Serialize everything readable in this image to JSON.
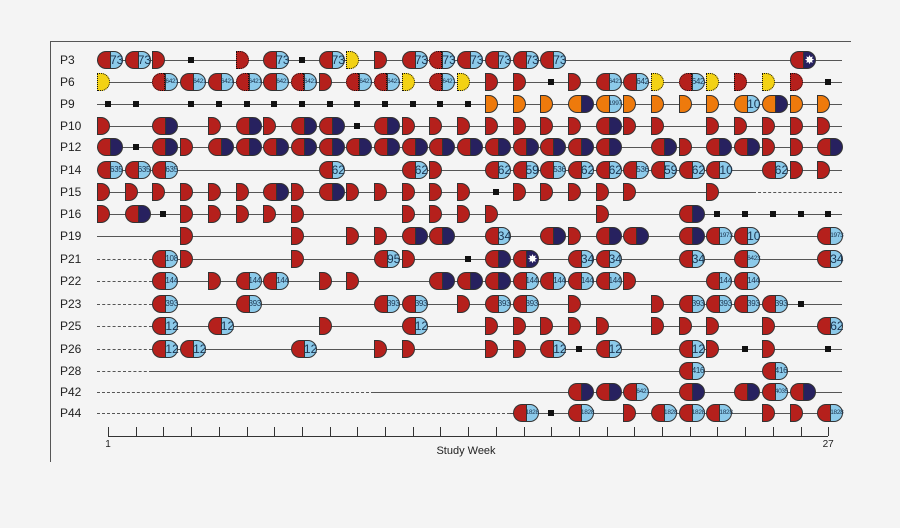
{
  "colors": {
    "red": "#b5201c",
    "navy": "#27215f",
    "light_blue": "#8ccaea",
    "yellow": "#f3d214",
    "orange": "#ee7a0c"
  },
  "legend_codes": {
    "R": "red half",
    "Rd": "red half dotted",
    "Y": "yellow half dotted",
    "O": "orange half",
    "RN": "red+navy",
    "RB": "red+light blue labeled",
    "RdB": "dotted red+light blue labeled",
    "ON": "orange+navy",
    "OB": "orange+light blue labeled",
    "RS": "red+navy with star",
    "sq": "black square"
  },
  "axis": {
    "label": "Study Week",
    "start_label": "1",
    "end_label": "27",
    "weeks": [
      1,
      27
    ]
  },
  "rows": [
    {
      "label": "P3",
      "lines": [
        [
          0.6,
          27.5,
          "solid"
        ]
      ],
      "events": [
        [
          1,
          "RB",
          "73"
        ],
        [
          2,
          "RB",
          "73"
        ],
        [
          3,
          "R"
        ],
        [
          4,
          "sq"
        ],
        [
          6,
          "Rd"
        ],
        [
          7,
          "RB",
          "73"
        ],
        [
          8,
          "sq"
        ],
        [
          9,
          "RB",
          "73"
        ],
        [
          10,
          "Y"
        ],
        [
          11,
          "R"
        ],
        [
          12,
          "RB",
          "73"
        ],
        [
          13,
          "RdB",
          "73"
        ],
        [
          14,
          "RB",
          "73"
        ],
        [
          15,
          "RB",
          "73"
        ],
        [
          16,
          "RB",
          "73"
        ],
        [
          17,
          "RB",
          "73"
        ],
        [
          26,
          "RS"
        ]
      ]
    },
    {
      "label": "P6",
      "lines": [
        [
          0.6,
          27.5,
          "solid"
        ]
      ],
      "events": [
        [
          1,
          "Y"
        ],
        [
          3,
          "RdB",
          "6421"
        ],
        [
          4,
          "RB",
          "6421"
        ],
        [
          5,
          "RB",
          "6421"
        ],
        [
          6,
          "RdB",
          "6421"
        ],
        [
          7,
          "RB",
          "6421"
        ],
        [
          8,
          "RdB",
          "6421"
        ],
        [
          9,
          "R"
        ],
        [
          10,
          "RdB",
          "6421"
        ],
        [
          11,
          "RdB",
          "6421"
        ],
        [
          12,
          "Y"
        ],
        [
          13,
          "RdB",
          "6421"
        ],
        [
          14,
          "Y"
        ],
        [
          15,
          "R"
        ],
        [
          16,
          "R"
        ],
        [
          17,
          "sq"
        ],
        [
          18,
          "R"
        ],
        [
          19,
          "RB",
          "6421"
        ],
        [
          20,
          "RB",
          "642"
        ],
        [
          21,
          "Y"
        ],
        [
          22,
          "RdB",
          "642"
        ],
        [
          23,
          "Y"
        ],
        [
          24,
          "Rd"
        ],
        [
          25,
          "Y"
        ],
        [
          26,
          "Rd"
        ],
        [
          27,
          "sq"
        ]
      ]
    },
    {
      "label": "P9",
      "lines": [
        [
          0.6,
          27.5,
          "solid"
        ]
      ],
      "events": [
        [
          1,
          "sq"
        ],
        [
          2,
          "sq"
        ],
        [
          4,
          "sq"
        ],
        [
          5,
          "sq"
        ],
        [
          6,
          "sq"
        ],
        [
          7,
          "sq"
        ],
        [
          8,
          "sq"
        ],
        [
          9,
          "sq"
        ],
        [
          10,
          "sq"
        ],
        [
          11,
          "sq"
        ],
        [
          12,
          "sq"
        ],
        [
          13,
          "sq"
        ],
        [
          14,
          "sq"
        ],
        [
          15,
          "O"
        ],
        [
          16,
          "O"
        ],
        [
          17,
          "O"
        ],
        [
          18,
          "ON"
        ],
        [
          19,
          "OB",
          "1997"
        ],
        [
          20,
          "O"
        ],
        [
          21,
          "O"
        ],
        [
          22,
          "O"
        ],
        [
          23,
          "O"
        ],
        [
          24,
          "OB",
          "10"
        ],
        [
          25,
          "ON"
        ],
        [
          26,
          "O"
        ],
        [
          27,
          "O"
        ]
      ]
    },
    {
      "label": "P10",
      "lines": [
        [
          0.6,
          27.5,
          "solid"
        ]
      ],
      "events": [
        [
          1,
          "R"
        ],
        [
          3,
          "RN"
        ],
        [
          5,
          "R"
        ],
        [
          6,
          "RN"
        ],
        [
          7,
          "R"
        ],
        [
          8,
          "RN"
        ],
        [
          9,
          "RN"
        ],
        [
          10,
          "sq"
        ],
        [
          11,
          "RN"
        ],
        [
          12,
          "R"
        ],
        [
          13,
          "R"
        ],
        [
          14,
          "R"
        ],
        [
          15,
          "R"
        ],
        [
          16,
          "R"
        ],
        [
          17,
          "R"
        ],
        [
          18,
          "R"
        ],
        [
          19,
          "RN"
        ],
        [
          20,
          "R"
        ],
        [
          21,
          "R"
        ],
        [
          23,
          "R"
        ],
        [
          24,
          "R"
        ],
        [
          25,
          "R"
        ],
        [
          26,
          "R"
        ],
        [
          27,
          "R"
        ]
      ]
    },
    {
      "label": "P12",
      "lines": [
        [
          0.6,
          27.5,
          "solid"
        ]
      ],
      "events": [
        [
          1,
          "RN"
        ],
        [
          2,
          "sq"
        ],
        [
          3,
          "RN"
        ],
        [
          4,
          "R"
        ],
        [
          5,
          "RN"
        ],
        [
          6,
          "RN"
        ],
        [
          7,
          "RN"
        ],
        [
          8,
          "RN"
        ],
        [
          9,
          "RN"
        ],
        [
          10,
          "RN"
        ],
        [
          11,
          "RN"
        ],
        [
          12,
          "RN"
        ],
        [
          13,
          "RN"
        ],
        [
          14,
          "RN"
        ],
        [
          15,
          "RN"
        ],
        [
          16,
          "RN"
        ],
        [
          17,
          "RN"
        ],
        [
          18,
          "RN"
        ],
        [
          19,
          "RN"
        ],
        [
          21,
          "RN"
        ],
        [
          22,
          "R"
        ],
        [
          23,
          "RN"
        ],
        [
          24,
          "RN"
        ],
        [
          25,
          "R"
        ],
        [
          26,
          "R"
        ],
        [
          27,
          "RN"
        ]
      ]
    },
    {
      "label": "P14",
      "lines": [
        [
          0.6,
          27.5,
          "solid"
        ]
      ],
      "events": [
        [
          1,
          "RB",
          "635"
        ],
        [
          2,
          "RB",
          "635"
        ],
        [
          3,
          "RB",
          "635"
        ],
        [
          9,
          "RB",
          "62"
        ],
        [
          12,
          "RB",
          "62"
        ],
        [
          13,
          "R"
        ],
        [
          15,
          "RB",
          "62"
        ],
        [
          16,
          "RB",
          "59"
        ],
        [
          17,
          "RB",
          "536"
        ],
        [
          18,
          "RB",
          "62"
        ],
        [
          19,
          "RB",
          "62"
        ],
        [
          20,
          "RB",
          "536"
        ],
        [
          21,
          "RB",
          "59"
        ],
        [
          22,
          "RB",
          "62"
        ],
        [
          23,
          "RB",
          "10"
        ],
        [
          25,
          "RB",
          "62"
        ],
        [
          26,
          "R"
        ],
        [
          27,
          "R"
        ]
      ]
    },
    {
      "label": "P15",
      "lines": [
        [
          0.6,
          24.3,
          "solid"
        ],
        [
          24.3,
          27.5,
          "dashed"
        ]
      ],
      "events": [
        [
          1,
          "R"
        ],
        [
          2,
          "R"
        ],
        [
          3,
          "R"
        ],
        [
          4,
          "R"
        ],
        [
          5,
          "R"
        ],
        [
          6,
          "R"
        ],
        [
          7,
          "RN"
        ],
        [
          8,
          "R"
        ],
        [
          9,
          "RN"
        ],
        [
          10,
          "R"
        ],
        [
          11,
          "R"
        ],
        [
          12,
          "R"
        ],
        [
          13,
          "R"
        ],
        [
          14,
          "R"
        ],
        [
          15,
          "sq"
        ],
        [
          16,
          "R"
        ],
        [
          17,
          "R"
        ],
        [
          18,
          "R"
        ],
        [
          19,
          "R"
        ],
        [
          20,
          "R"
        ],
        [
          23,
          "R"
        ]
      ]
    },
    {
      "label": "P16",
      "lines": [
        [
          0.6,
          27.5,
          "solid"
        ]
      ],
      "events": [
        [
          1,
          "R"
        ],
        [
          2,
          "RN"
        ],
        [
          3,
          "sq"
        ],
        [
          4,
          "R"
        ],
        [
          5,
          "R"
        ],
        [
          6,
          "R"
        ],
        [
          7,
          "R"
        ],
        [
          8,
          "R"
        ],
        [
          12,
          "R"
        ],
        [
          13,
          "R"
        ],
        [
          14,
          "R"
        ],
        [
          15,
          "R"
        ],
        [
          19,
          "R"
        ],
        [
          22,
          "RN"
        ],
        [
          23,
          "sq"
        ],
        [
          24,
          "sq"
        ],
        [
          25,
          "sq"
        ],
        [
          26,
          "sq"
        ],
        [
          27,
          "sq"
        ]
      ]
    },
    {
      "label": "P19",
      "lines": [
        [
          0.6,
          27.5,
          "solid"
        ]
      ],
      "events": [
        [
          4,
          "R"
        ],
        [
          8,
          "R"
        ],
        [
          10,
          "R"
        ],
        [
          11,
          "R"
        ],
        [
          12,
          "RN"
        ],
        [
          13,
          "RN"
        ],
        [
          15,
          "RB",
          "34"
        ],
        [
          17,
          "RN"
        ],
        [
          18,
          "R"
        ],
        [
          19,
          "RN"
        ],
        [
          20,
          "RN"
        ],
        [
          22,
          "RN"
        ],
        [
          23,
          "RB",
          "1973"
        ],
        [
          24,
          "RB",
          "10"
        ],
        [
          27,
          "RB",
          "1973"
        ]
      ]
    },
    {
      "label": "P21",
      "lines": [
        [
          0.6,
          2.6,
          "dashed"
        ],
        [
          2.6,
          27.5,
          "solid"
        ]
      ],
      "events": [
        [
          3,
          "RB",
          "108"
        ],
        [
          4,
          "R"
        ],
        [
          8,
          "R"
        ],
        [
          11,
          "RB",
          "95"
        ],
        [
          12,
          "R"
        ],
        [
          14,
          "sq"
        ],
        [
          15,
          "RN"
        ],
        [
          16,
          "RS"
        ],
        [
          18,
          "RB",
          "34"
        ],
        [
          19,
          "RB",
          "34"
        ],
        [
          22,
          "RB",
          "34"
        ],
        [
          24,
          "RB",
          "6423"
        ],
        [
          27,
          "RB",
          "34"
        ]
      ]
    },
    {
      "label": "P22",
      "lines": [
        [
          0.6,
          2.6,
          "dashed"
        ],
        [
          2.6,
          27.5,
          "solid"
        ]
      ],
      "events": [
        [
          3,
          "RB",
          "144"
        ],
        [
          5,
          "R"
        ],
        [
          6,
          "RB",
          "144"
        ],
        [
          7,
          "RB",
          "144"
        ],
        [
          9,
          "R"
        ],
        [
          10,
          "R"
        ],
        [
          13,
          "RN"
        ],
        [
          14,
          "RN"
        ],
        [
          15,
          "RN"
        ],
        [
          16,
          "RB",
          "144"
        ],
        [
          17,
          "RB",
          "144"
        ],
        [
          18,
          "RB",
          "144"
        ],
        [
          19,
          "RB",
          "144"
        ],
        [
          20,
          "R"
        ],
        [
          23,
          "RB",
          "144"
        ],
        [
          24,
          "RB",
          "144"
        ]
      ]
    },
    {
      "label": "P23",
      "lines": [
        [
          0.6,
          2.6,
          "dashed"
        ],
        [
          2.6,
          27.5,
          "solid"
        ]
      ],
      "events": [
        [
          3,
          "RB",
          "393"
        ],
        [
          6,
          "RB",
          "393"
        ],
        [
          11,
          "RB",
          "393"
        ],
        [
          12,
          "RB",
          "393"
        ],
        [
          14,
          "R"
        ],
        [
          15,
          "RB",
          "393"
        ],
        [
          16,
          "RB",
          "393"
        ],
        [
          18,
          "R"
        ],
        [
          21,
          "R"
        ],
        [
          22,
          "RB",
          "393"
        ],
        [
          23,
          "RB",
          "393"
        ],
        [
          24,
          "RB",
          "393"
        ],
        [
          25,
          "RB",
          "393"
        ],
        [
          26,
          "sq"
        ]
      ]
    },
    {
      "label": "P25",
      "lines": [
        [
          0.6,
          2.6,
          "dashed"
        ],
        [
          2.6,
          27.5,
          "solid"
        ]
      ],
      "events": [
        [
          3,
          "RB",
          "12"
        ],
        [
          5,
          "RB",
          "12"
        ],
        [
          9,
          "R"
        ],
        [
          12,
          "RB",
          "12"
        ],
        [
          15,
          "R"
        ],
        [
          16,
          "R"
        ],
        [
          17,
          "R"
        ],
        [
          18,
          "R"
        ],
        [
          19,
          "R"
        ],
        [
          21,
          "R"
        ],
        [
          22,
          "R"
        ],
        [
          23,
          "R"
        ],
        [
          25,
          "R"
        ],
        [
          27,
          "RB",
          "62"
        ]
      ]
    },
    {
      "label": "P26",
      "lines": [
        [
          0.6,
          2.6,
          "dashed"
        ],
        [
          2.6,
          27.5,
          "solid"
        ]
      ],
      "events": [
        [
          3,
          "RB",
          "12"
        ],
        [
          4,
          "RB",
          "12"
        ],
        [
          8,
          "RB",
          "12"
        ],
        [
          11,
          "R"
        ],
        [
          12,
          "R"
        ],
        [
          15,
          "R"
        ],
        [
          16,
          "R"
        ],
        [
          17,
          "RB",
          "12"
        ],
        [
          18,
          "sq"
        ],
        [
          19,
          "RB",
          "12"
        ],
        [
          22,
          "RB",
          "12"
        ],
        [
          23,
          "R"
        ],
        [
          24,
          "sq"
        ],
        [
          25,
          "R"
        ],
        [
          27,
          "sq"
        ]
      ]
    },
    {
      "label": "P28",
      "lines": [
        [
          0.6,
          2.6,
          "dashed"
        ],
        [
          2.6,
          27.5,
          "solid"
        ]
      ],
      "events": [
        [
          22,
          "RB",
          "416"
        ],
        [
          25,
          "RB",
          "416"
        ]
      ]
    },
    {
      "label": "P42",
      "lines": [
        [
          0.6,
          10.6,
          "dashed"
        ],
        [
          10.6,
          27.5,
          "solid"
        ]
      ],
      "events": [
        [
          18,
          "RN"
        ],
        [
          19,
          "RN"
        ],
        [
          20,
          "RB",
          "6421"
        ],
        [
          22,
          "RN"
        ],
        [
          24,
          "RN"
        ],
        [
          25,
          "RB",
          "4035"
        ],
        [
          26,
          "RN"
        ]
      ]
    },
    {
      "label": "P44",
      "lines": [
        [
          0.6,
          15.5,
          "dashed"
        ],
        [
          15.5,
          27.5,
          "solid"
        ]
      ],
      "events": [
        [
          16,
          "RB",
          "1828"
        ],
        [
          17,
          "sq"
        ],
        [
          18,
          "RB",
          "1828"
        ],
        [
          20,
          "R"
        ],
        [
          21,
          "RB",
          "1828"
        ],
        [
          22,
          "RB",
          "1828"
        ],
        [
          23,
          "RB",
          "1828"
        ],
        [
          25,
          "R"
        ],
        [
          26,
          "R"
        ],
        [
          27,
          "RB",
          "1828"
        ]
      ]
    }
  ]
}
